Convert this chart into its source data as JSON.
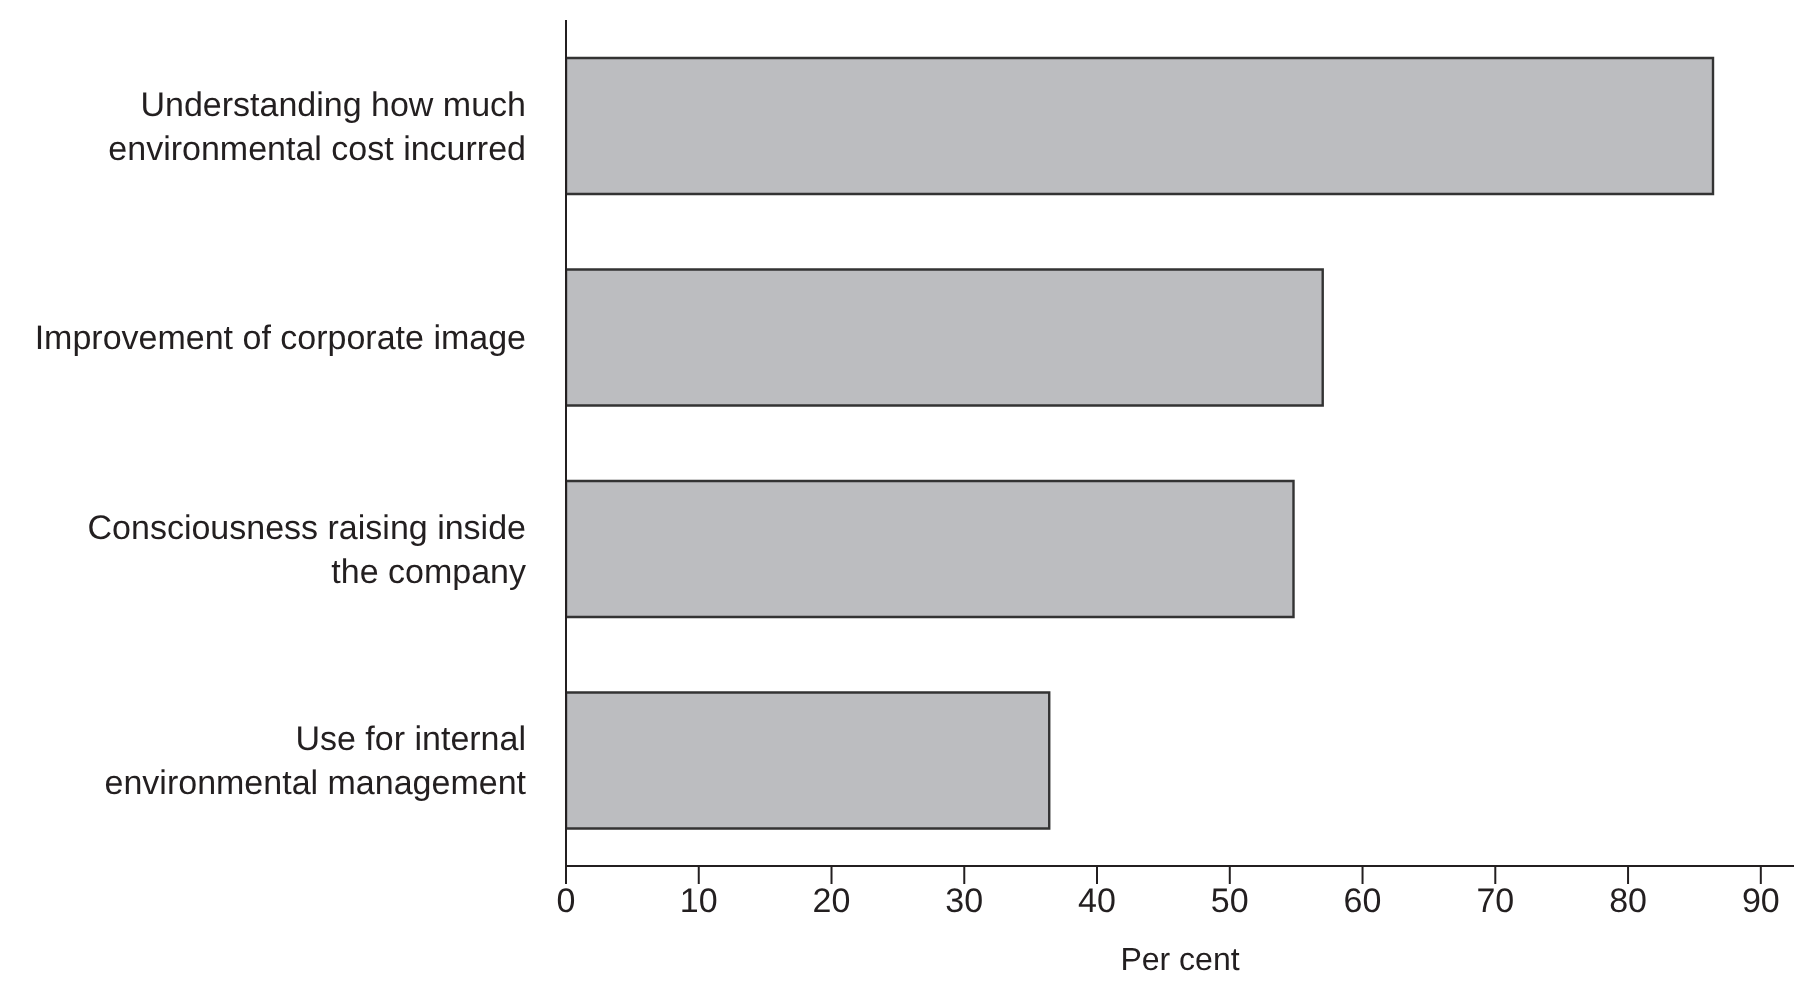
{
  "chart_data": {
    "type": "bar",
    "orientation": "horizontal",
    "categories": [
      "Understanding how much\nenvironmental cost incurred",
      "Improvement of corporate image",
      "Consciousness raising inside\nthe company",
      "Use for internal\nenvironmental management"
    ],
    "values": [
      86.4,
      57.0,
      54.8,
      36.4
    ],
    "color": "#bcbdc0",
    "xlabel": "Per cent",
    "xlim": [
      0,
      92.5
    ],
    "xticks": [
      0,
      10,
      20,
      30,
      40,
      50,
      60,
      70,
      80,
      90
    ],
    "grid": false,
    "legend": false
  }
}
